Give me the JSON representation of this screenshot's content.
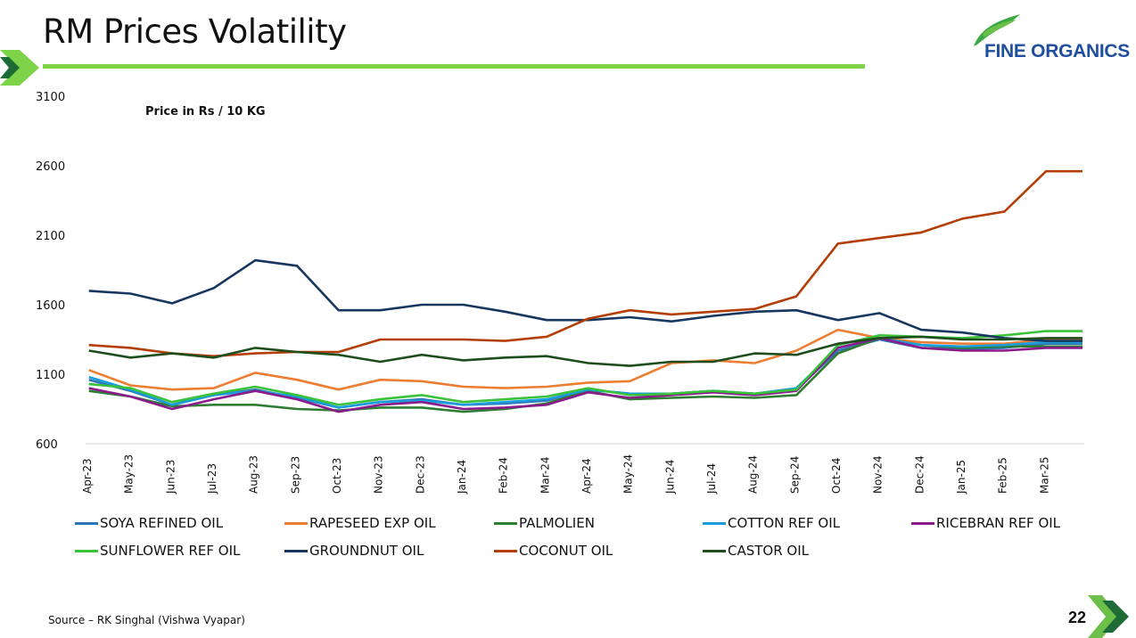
{
  "slide": {
    "title": "RM Prices Volatility",
    "source": "Source – RK Singhal (Vishwa Vyapar)",
    "page_number": "22"
  },
  "logo": {
    "text": "FINE ORGANICS"
  },
  "colors": {
    "accent_green": "#7ed348",
    "brand_blue": "#1f4e9e",
    "chevron_green": "#6cc04a",
    "chevron_dark": "#1d6b36"
  },
  "chart_data": {
    "type": "line",
    "title": "",
    "annotation": "Price in Rs / 10 KG",
    "xlabel": "",
    "ylabel": "",
    "ylim": [
      600,
      3100
    ],
    "yticks": [
      600,
      1100,
      1600,
      2100,
      2600,
      3100
    ],
    "grid": false,
    "legend_position": "bottom",
    "x": [
      "Apr-23",
      "May-23",
      "Jun-23",
      "Jul-23",
      "Aug-23",
      "Sep-23",
      "Oct-23",
      "Nov-23",
      "Dec-23",
      "Jan-24",
      "Feb-24",
      "Mar-24",
      "Apr-24",
      "May-24",
      "Jun-24",
      "Jul-24",
      "Aug-24",
      "Sep-24",
      "Oct-24",
      "Nov-24",
      "Dec-24",
      "Jan-25",
      "Feb-25",
      "Mar-25"
    ],
    "series": [
      {
        "name": "SOYA REFINED OIL",
        "color": "#2e75b6",
        "values": [
          1060,
          980,
          880,
          950,
          990,
          930,
          860,
          900,
          920,
          880,
          890,
          910,
          990,
          960,
          960,
          980,
          960,
          990,
          1270,
          1350,
          1290,
          1280,
          1290,
          1320
        ]
      },
      {
        "name": "RAPESEED EXP OIL",
        "color": "#ed7d31",
        "values": [
          1130,
          1020,
          990,
          1000,
          1110,
          1060,
          990,
          1060,
          1050,
          1010,
          1000,
          1010,
          1040,
          1050,
          1180,
          1200,
          1180,
          1270,
          1420,
          1360,
          1330,
          1320,
          1320,
          1350
        ]
      },
      {
        "name": "PALMOLIEN",
        "color": "#2e7d32",
        "values": [
          980,
          940,
          870,
          880,
          880,
          850,
          840,
          860,
          860,
          830,
          850,
          890,
          980,
          920,
          930,
          940,
          930,
          950,
          1250,
          1360,
          1310,
          1290,
          1300,
          1300
        ]
      },
      {
        "name": "COTTON REF OIL",
        "color": "#1b9ddb",
        "values": [
          1080,
          990,
          880,
          950,
          980,
          940,
          860,
          900,
          910,
          880,
          900,
          920,
          990,
          960,
          960,
          980,
          960,
          1000,
          1290,
          1360,
          1310,
          1300,
          1310,
          1330
        ]
      },
      {
        "name": "RICEBRAN REF OIL",
        "color": "#8b1a8b",
        "values": [
          1000,
          940,
          850,
          920,
          980,
          920,
          830,
          880,
          900,
          850,
          860,
          880,
          970,
          930,
          950,
          970,
          950,
          980,
          1290,
          1360,
          1290,
          1270,
          1270,
          1290
        ]
      },
      {
        "name": "SUNFLOWER REF OIL",
        "color": "#39c23a",
        "values": [
          1030,
          1000,
          900,
          960,
          1010,
          950,
          880,
          920,
          950,
          900,
          920,
          940,
          1000,
          950,
          960,
          980,
          960,
          990,
          1310,
          1380,
          1370,
          1360,
          1380,
          1410
        ]
      },
      {
        "name": "GROUNDNUT OIL",
        "color": "#17375e",
        "values": [
          1700,
          1680,
          1610,
          1720,
          1920,
          1880,
          1560,
          1560,
          1600,
          1600,
          1550,
          1490,
          1490,
          1510,
          1480,
          1520,
          1550,
          1560,
          1490,
          1540,
          1420,
          1400,
          1360,
          1340
        ]
      },
      {
        "name": "COCONUT OIL",
        "color": "#b33e07",
        "values": [
          1310,
          1290,
          1250,
          1230,
          1250,
          1260,
          1260,
          1350,
          1350,
          1350,
          1340,
          1370,
          1500,
          1560,
          1530,
          1550,
          1570,
          1660,
          2040,
          2080,
          2120,
          2220,
          2270,
          2560
        ]
      },
      {
        "name": "CASTOR OIL",
        "color": "#1e4d1e",
        "values": [
          1270,
          1220,
          1250,
          1220,
          1290,
          1260,
          1240,
          1190,
          1240,
          1200,
          1220,
          1230,
          1180,
          1160,
          1190,
          1190,
          1250,
          1240,
          1320,
          1360,
          1370,
          1350,
          1350,
          1360
        ]
      }
    ]
  }
}
